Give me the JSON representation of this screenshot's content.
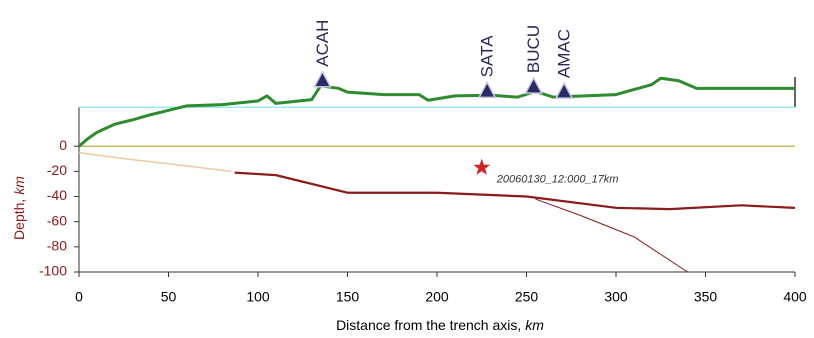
{
  "chart_data": {
    "type": "line",
    "x_label": "Distance from the trench axis,",
    "x_label_unit": "km",
    "y_label": "Depth,",
    "y_label_unit": "km",
    "xlim": [
      0,
      400
    ],
    "xticks": [
      0,
      50,
      100,
      150,
      200,
      250,
      300,
      350,
      400
    ],
    "ylim": [
      -100,
      55
    ],
    "yticks": [
      0,
      -20,
      -40,
      -60,
      -80,
      -100
    ],
    "hlines": [
      {
        "value": 0,
        "color": "#b5a030"
      },
      {
        "value": 31,
        "color": "#7fe0f0"
      }
    ],
    "series": [
      {
        "color": "#2e8b2e",
        "width": 3,
        "x": [
          0,
          5,
          10,
          20,
          30,
          40,
          50,
          60,
          80,
          100,
          105,
          110,
          130,
          135,
          145,
          150,
          170,
          190,
          195,
          210,
          230,
          245,
          255,
          265,
          300,
          320,
          325,
          335,
          345,
          390,
          400
        ],
        "values": [
          0,
          6,
          11,
          17.5,
          21,
          25,
          28.5,
          32,
          33,
          36,
          40,
          34,
          37,
          48,
          46,
          43,
          41,
          41,
          36.5,
          40,
          40.5,
          39,
          43.5,
          39,
          41,
          49,
          54,
          52,
          46,
          46,
          46
        ]
      },
      {
        "color": "#f0c8a0",
        "width": 1.5,
        "x": [
          0,
          20,
          50,
          85
        ],
        "values": [
          -5,
          -9,
          -14,
          -20
        ]
      },
      {
        "color": "#8b1a1a",
        "width": 2.2,
        "x": [
          87,
          110,
          150,
          200,
          250,
          300,
          330,
          370,
          400
        ],
        "values": [
          -21,
          -23,
          -37,
          -37,
          -40,
          -49,
          -50,
          -47,
          -49
        ]
      },
      {
        "color": "#8b1a1a",
        "width": 1,
        "x": [
          255,
          280,
          310,
          340
        ],
        "values": [
          -42,
          -55,
          -72,
          -100
        ]
      }
    ],
    "stations": [
      {
        "label": "ACAH",
        "x": 136,
        "elevation": 52
      },
      {
        "label": "SATA",
        "x": 228,
        "elevation": 43.6
      },
      {
        "label": "BUCU",
        "x": 254,
        "elevation": 47
      },
      {
        "label": "AMAC",
        "x": 271,
        "elevation": 43
      }
    ],
    "events": [
      {
        "label": "20060130_12:000_17km",
        "x": 225,
        "depth": -17,
        "color": "#d42020"
      }
    ]
  }
}
